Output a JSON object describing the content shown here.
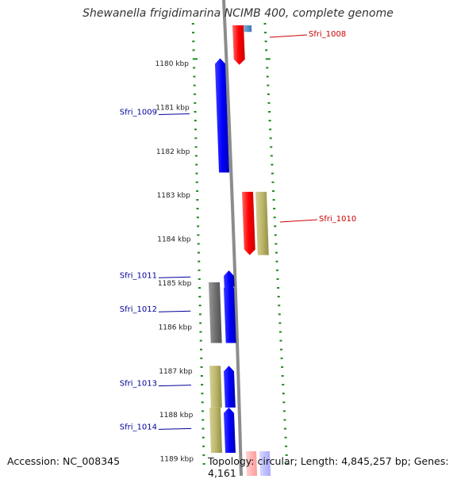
{
  "title": "Shewanella frigidimarina NCIMB 400, complete genome",
  "footer": {
    "accession": "Accession: NC_008345",
    "summary": "Topology: circular; Length: 4,845,257 bp; Genes: 4,161"
  },
  "colors": {
    "forward": "#ff0000",
    "reverse": "#0000ff",
    "gray_gene": "#707070",
    "khaki_gene": "#bdb76b",
    "backbone": "#8c8c8c",
    "ticks": "#1a8a1a",
    "label_forward": "#cc0000",
    "label_reverse": "#000099"
  },
  "map": {
    "kbp_start": 1179.2,
    "kbp_end": 1189.1,
    "kbp_labels": [
      "1180 kbp",
      "1181 kbp",
      "1182 kbp",
      "1183 kbp",
      "1184 kbp",
      "1185 kbp",
      "1186 kbp",
      "1187 kbp",
      "1188 kbp",
      "1189 kbp"
    ],
    "genes": [
      {
        "name": "Sfri_1008",
        "strand": "+",
        "color": "red",
        "start": 1179.15,
        "end": 1180.05
      },
      {
        "name": "",
        "strand": "+",
        "color": "steel",
        "start": 1179.15,
        "end": 1179.3
      },
      {
        "name": "Sfri_1009",
        "strand": "-",
        "color": "blue",
        "start": 1179.9,
        "end": 1182.5
      },
      {
        "name": "Sfri_1010",
        "strand": "+",
        "color": "red",
        "start": 1182.94,
        "end": 1184.38
      },
      {
        "name": "",
        "strand": "+",
        "color": "khaki",
        "start": 1182.94,
        "end": 1184.38
      },
      {
        "name": "Sfri_1011",
        "strand": "-",
        "color": "blue",
        "start": 1184.73,
        "end": 1185.1
      },
      {
        "name": "",
        "strand": "-",
        "color": "gray",
        "start": 1185.0,
        "end": 1186.38
      },
      {
        "name": "Sfri_1012",
        "strand": "-",
        "color": "blue",
        "start": 1185.0,
        "end": 1186.38
      },
      {
        "name": "",
        "strand": "-",
        "color": "khaki",
        "start": 1186.9,
        "end": 1187.85
      },
      {
        "name": "Sfri_1013",
        "strand": "-",
        "color": "blue",
        "start": 1186.9,
        "end": 1187.85
      },
      {
        "name": "",
        "strand": "-",
        "color": "khaki",
        "start": 1187.85,
        "end": 1188.88
      },
      {
        "name": "Sfri_1014",
        "strand": "-",
        "color": "blue",
        "start": 1187.85,
        "end": 1188.88
      },
      {
        "name": "",
        "strand": "+",
        "color": "lightred",
        "start": 1189.0,
        "end": 1189.3
      },
      {
        "name": "",
        "strand": "+",
        "color": "lightblue",
        "start": 1189.0,
        "end": 1189.3
      }
    ]
  }
}
